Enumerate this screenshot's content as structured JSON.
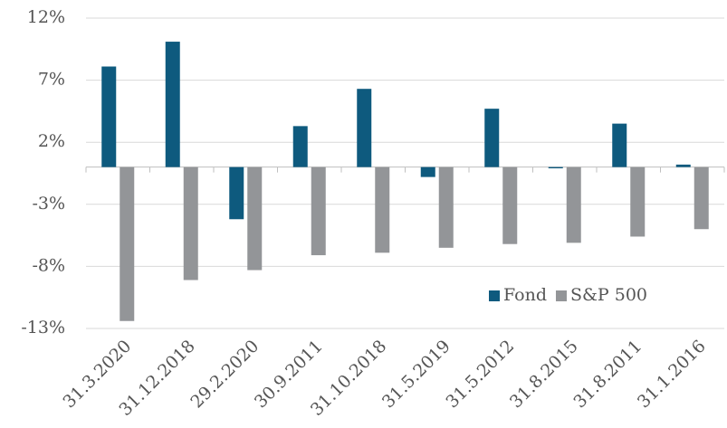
{
  "chart_data": {
    "type": "bar",
    "categories": [
      "31.3.2020",
      "31.12.2018",
      "29.2.2020",
      "30.9.2011",
      "31.10.2018",
      "31.5.2019",
      "31.5.2012",
      "31.8.2015",
      "31.8.2011",
      "31.1.2016"
    ],
    "series": [
      {
        "name": "Fond",
        "color": "#0e5a7e",
        "values": [
          8.1,
          10.1,
          -4.2,
          3.3,
          6.3,
          -0.8,
          4.7,
          -0.1,
          3.5,
          0.2
        ]
      },
      {
        "name": "S&P 500",
        "color": "#939598",
        "values": [
          -12.4,
          -9.1,
          -8.3,
          -7.1,
          -6.9,
          -6.5,
          -6.2,
          -6.1,
          -5.6,
          -5.0
        ]
      }
    ],
    "ylim": [
      -13,
      12
    ],
    "yticks": [
      {
        "value": -13,
        "label": "-13%"
      },
      {
        "value": -8,
        "label": "-8%"
      },
      {
        "value": -3,
        "label": "-3%"
      },
      {
        "value": 2,
        "label": "2%"
      },
      {
        "value": 7,
        "label": "7%"
      },
      {
        "value": 12,
        "label": "12%"
      }
    ],
    "grid": true,
    "legend": "lower-right"
  }
}
